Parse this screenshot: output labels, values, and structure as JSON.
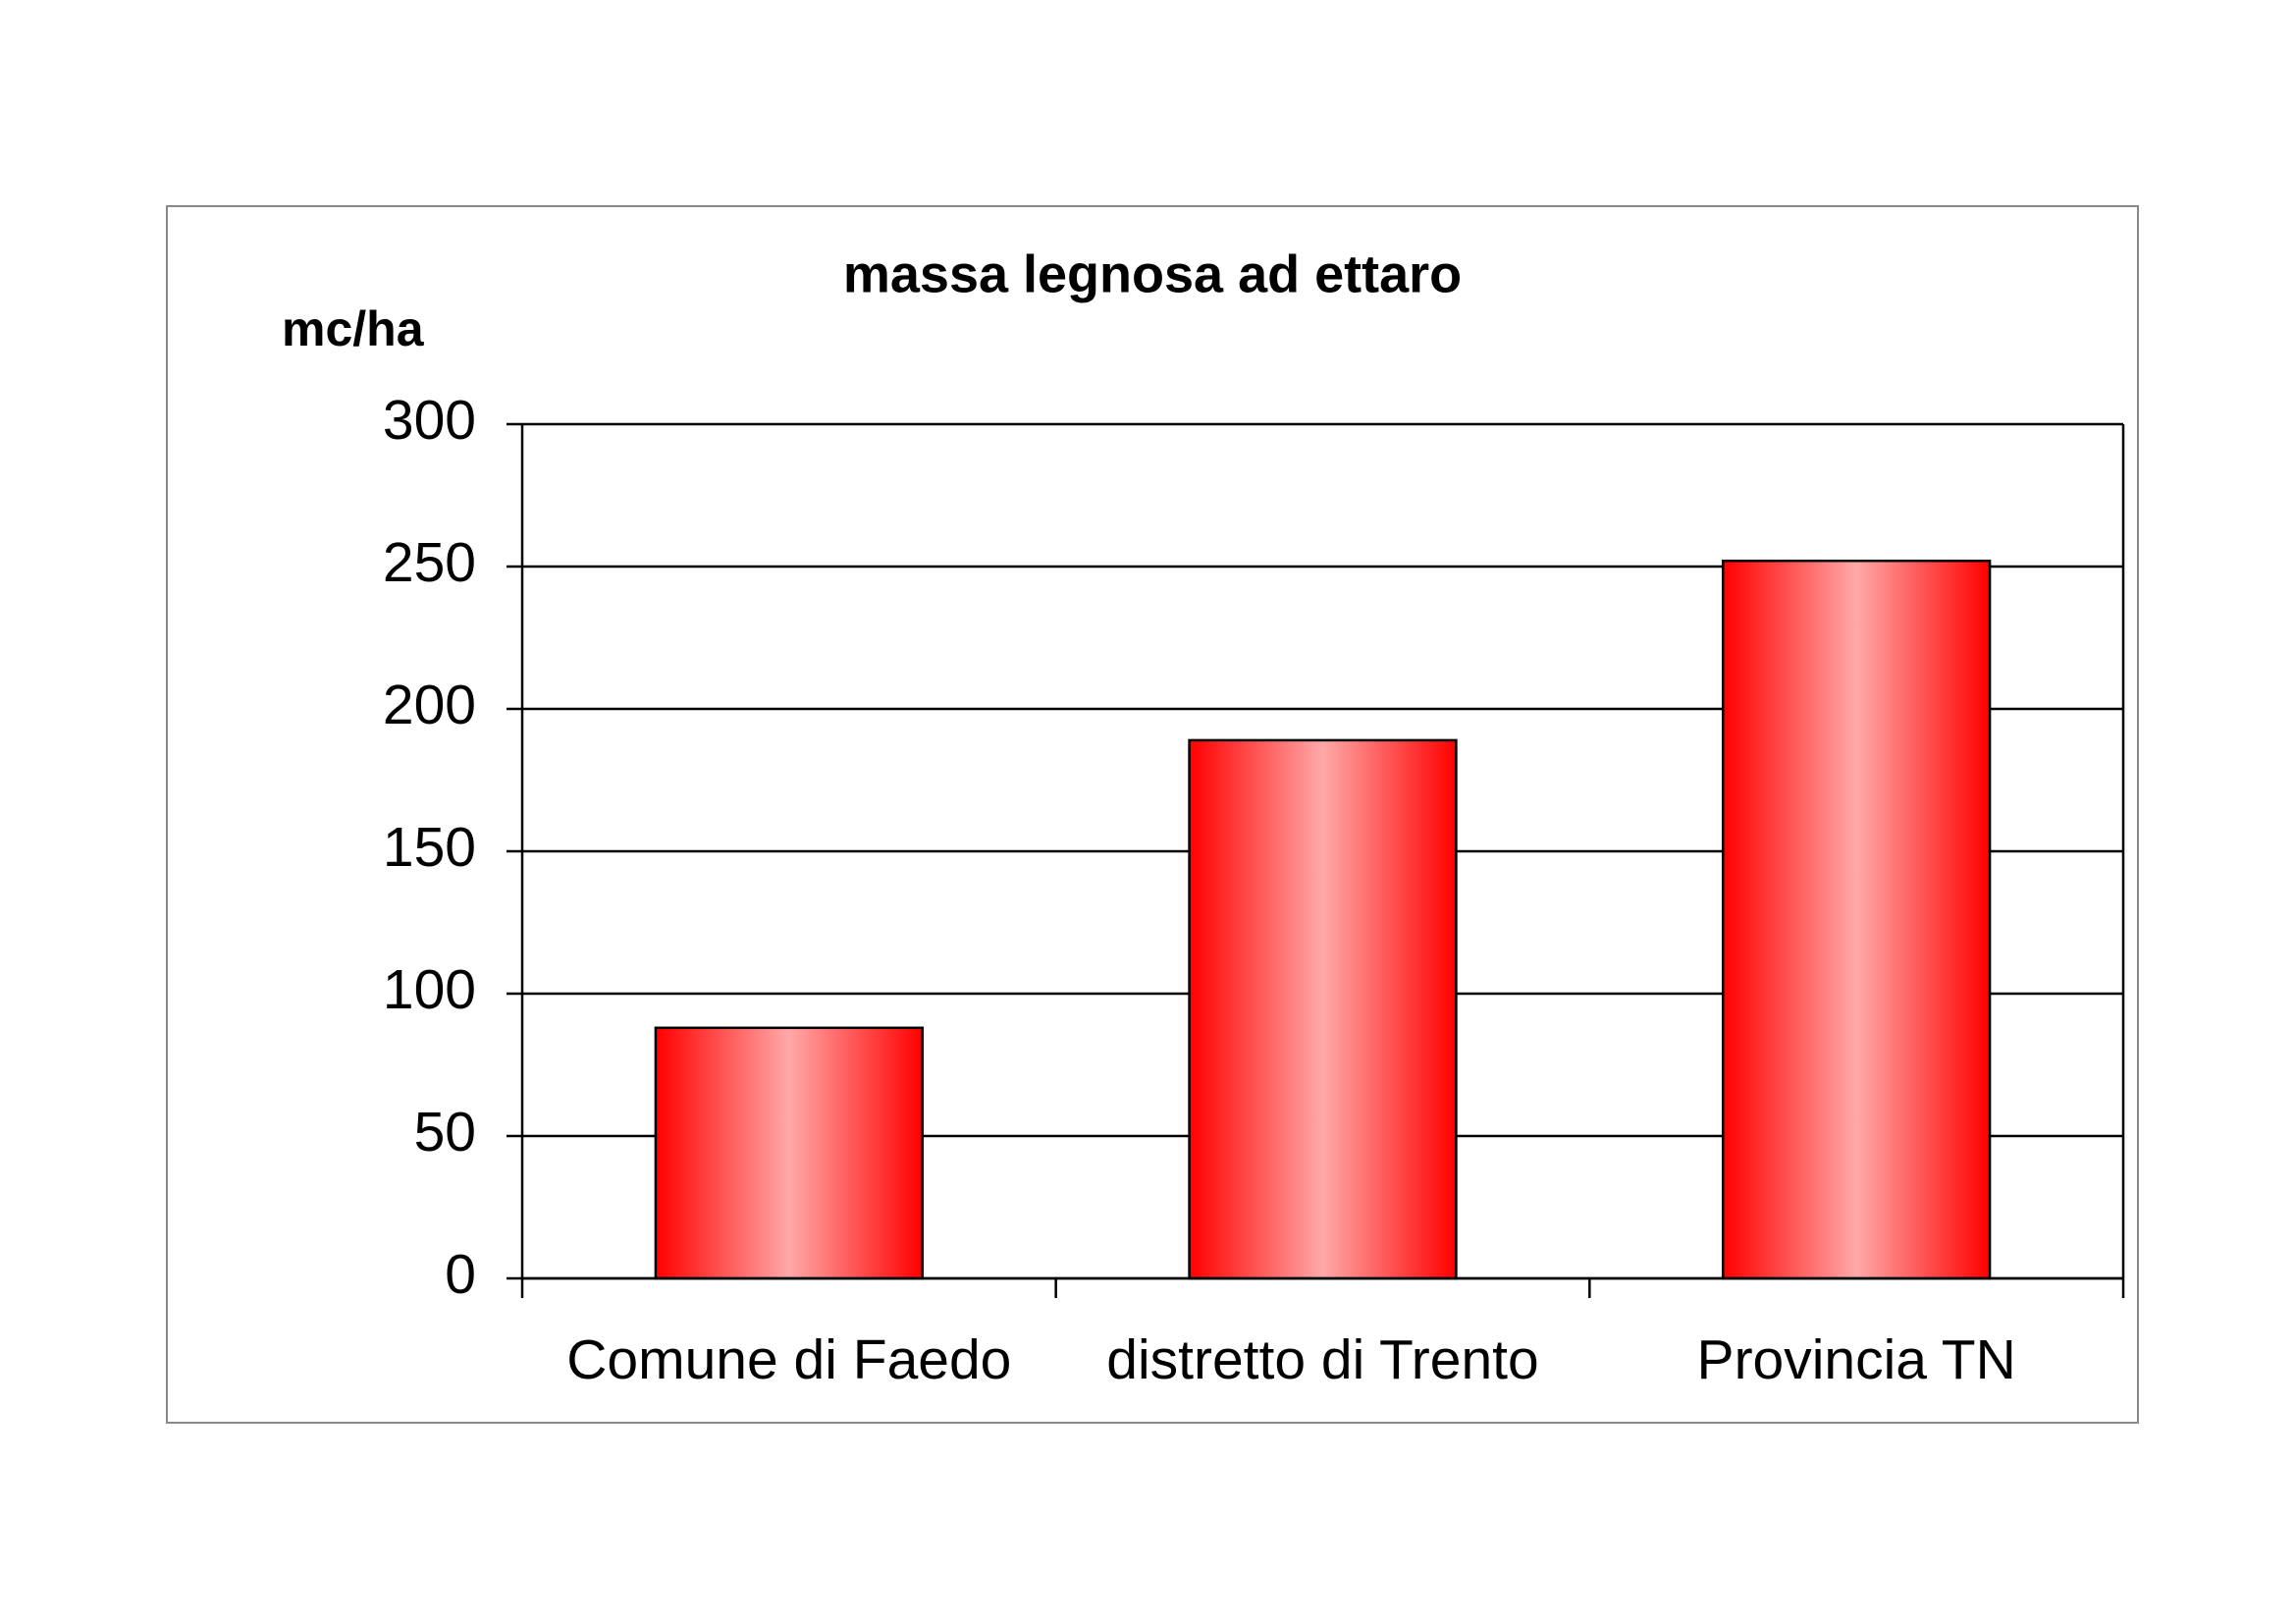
{
  "chart_data": {
    "type": "bar",
    "title": "massa legnosa ad ettaro",
    "y_label": "mc/ha",
    "categories": [
      "Comune di Faedo",
      "distretto di Trento",
      "Provincia TN"
    ],
    "values": [
      88,
      189,
      252
    ],
    "color": "#ff0000",
    "ylim": [
      0,
      300
    ],
    "yticks": [
      0,
      50,
      100,
      150,
      200,
      250,
      300
    ],
    "grid": true
  }
}
